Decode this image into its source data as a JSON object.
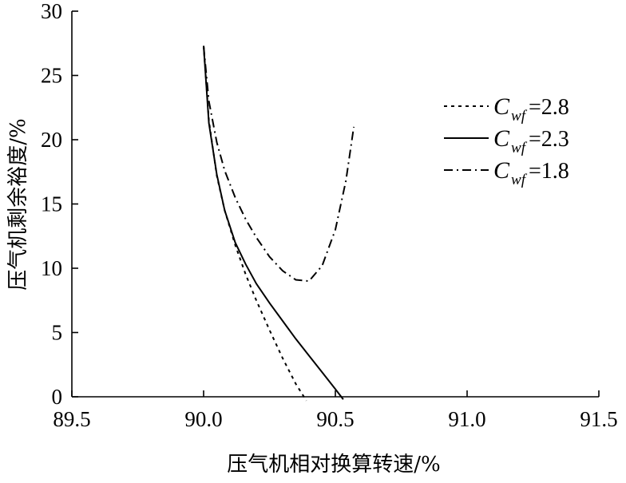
{
  "chart_data": {
    "type": "line",
    "xlabel": "压气机相对换算转速/%",
    "ylabel": "压气机剩余裕度/%",
    "xlim": [
      89.5,
      91.5
    ],
    "ylim": [
      0,
      30
    ],
    "xticks": [
      "89.5",
      "90.0",
      "90.5",
      "91.0",
      "91.5"
    ],
    "yticks": [
      "0",
      "5",
      "10",
      "15",
      "20",
      "25",
      "30"
    ],
    "grid": false,
    "legend_position": "upper-right",
    "series": [
      {
        "name": "C",
        "name_subscript": "wf",
        "name_value": "=2.8",
        "line_style": "dotted",
        "x": [
          90.0,
          90.02,
          90.05,
          90.08,
          90.12,
          90.16,
          90.2,
          90.25,
          90.3,
          90.35,
          90.39
        ],
        "y": [
          27.3,
          21.5,
          17.2,
          14.5,
          11.8,
          9.5,
          7.5,
          5.2,
          3.0,
          1.0,
          -0.3
        ]
      },
      {
        "name": "C",
        "name_subscript": "wf",
        "name_value": "=2.3",
        "line_style": "solid",
        "x": [
          90.0,
          90.02,
          90.05,
          90.08,
          90.12,
          90.16,
          90.2,
          90.25,
          90.3,
          90.35,
          90.4,
          90.45,
          90.5,
          90.53
        ],
        "y": [
          27.3,
          21.3,
          17.3,
          14.5,
          12.0,
          10.3,
          8.8,
          7.3,
          5.9,
          4.5,
          3.2,
          1.9,
          0.6,
          -0.2
        ]
      },
      {
        "name": "C",
        "name_subscript": "wf",
        "name_value": "=1.8",
        "line_style": "dash-dot",
        "x": [
          90.0,
          90.02,
          90.05,
          90.08,
          90.12,
          90.16,
          90.2,
          90.25,
          90.3,
          90.35,
          90.4,
          90.45,
          90.5,
          90.54,
          90.57
        ],
        "y": [
          27.3,
          23.0,
          19.8,
          17.6,
          15.5,
          13.8,
          12.4,
          10.9,
          9.8,
          9.1,
          9.0,
          10.2,
          13.0,
          16.8,
          21.0
        ]
      }
    ]
  }
}
